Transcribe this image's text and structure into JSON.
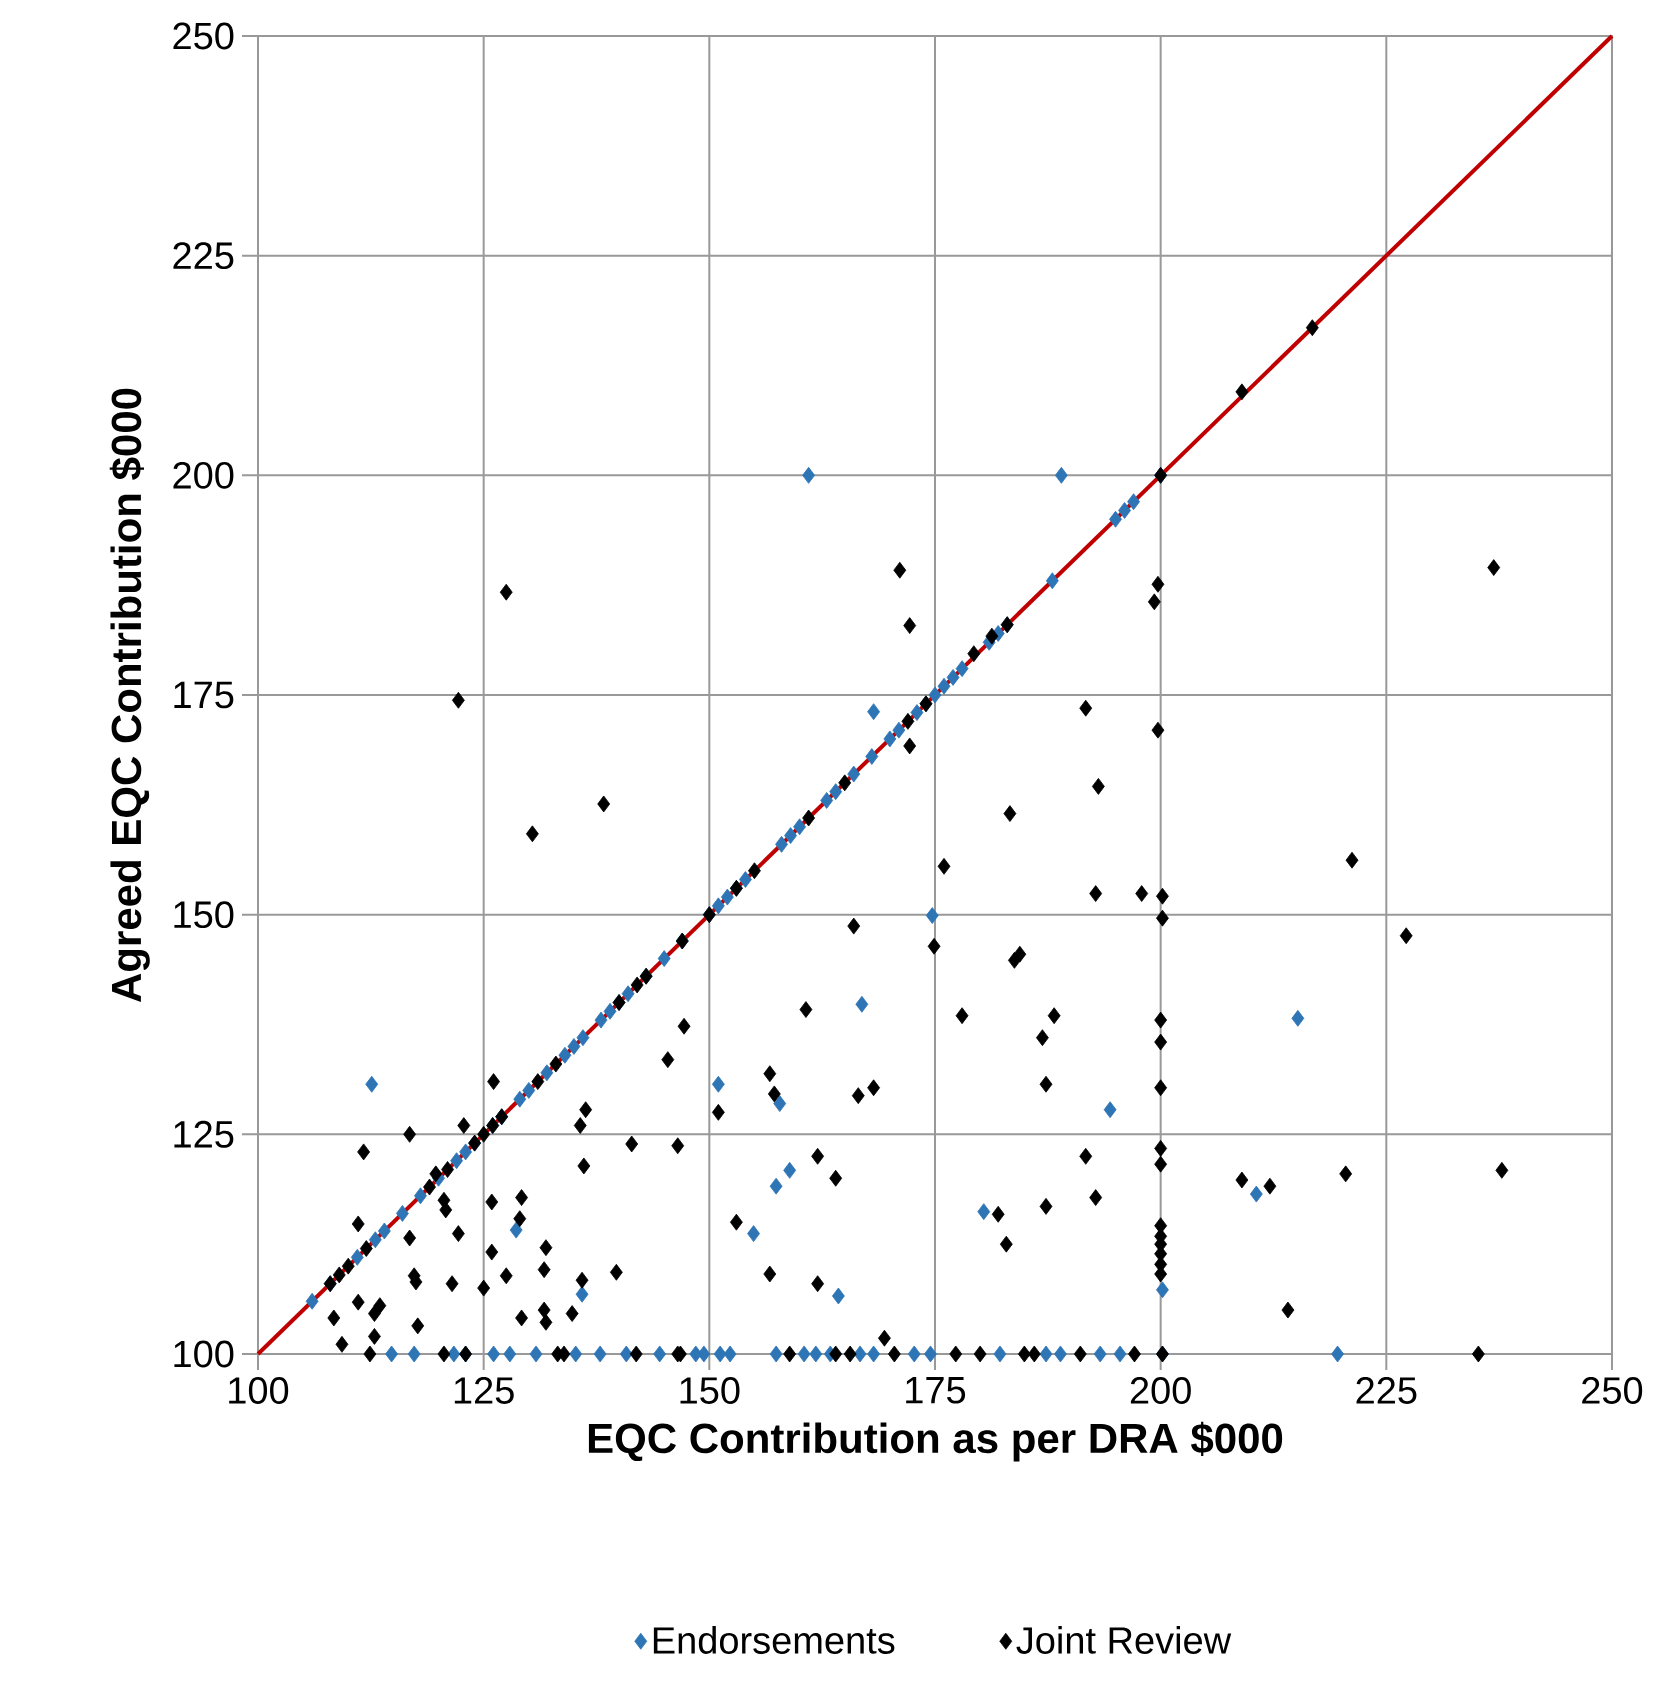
{
  "chart_data": {
    "type": "scatter",
    "xlabel": "EQC Contribution  as per DRA $000",
    "ylabel": "Agreed EQC Contribution  $000",
    "xlim": [
      100,
      250
    ],
    "ylim": [
      100,
      250
    ],
    "xticks": [
      100,
      125,
      150,
      175,
      200,
      225,
      250
    ],
    "yticks": [
      100,
      125,
      150,
      175,
      200,
      225,
      250
    ],
    "grid": true,
    "legend": "bottom",
    "series": [
      {
        "name": "Endorsements",
        "color": "#2e75b6",
        "marker": "diamond",
        "x": [
          106,
          108,
          111,
          113,
          114,
          116,
          118,
          120,
          122,
          123,
          124,
          126,
          127,
          129,
          130,
          132,
          134,
          135,
          136,
          138,
          139,
          140,
          141,
          143,
          145,
          147,
          150,
          151,
          152,
          153,
          154,
          158,
          159,
          160,
          163,
          164,
          166,
          168,
          170,
          171,
          173,
          174,
          175,
          176,
          177,
          178,
          181,
          182,
          183,
          188,
          195,
          196,
          197,
          200,
          161,
          189,
          112.6,
          168.2,
          174.7,
          166.9,
          151,
          157.8,
          194.4,
          158.9,
          157.4,
          154.9,
          180.4,
          164.3,
          128.6,
          135.9,
          215.2,
          210.6,
          200.2,
          114.8,
          117.3,
          121.7,
          123,
          126.1,
          127.9,
          130.8,
          135.2,
          137.9,
          140.8,
          144.5,
          148.5,
          149.4,
          151.2,
          152.3,
          157.4,
          160.5,
          161.8,
          163.4,
          166.7,
          168.2,
          172.7,
          174.5,
          182.2,
          187.3,
          188.9,
          193.3,
          195.5,
          200.2,
          219.6
        ],
        "values": [
          106,
          108,
          111,
          113,
          114,
          116,
          118,
          120,
          122,
          123,
          124,
          126,
          127,
          129,
          130,
          132,
          134,
          135,
          136,
          138,
          139,
          140,
          141,
          143,
          145,
          147,
          150,
          151,
          152,
          153,
          154,
          158,
          159,
          160,
          163,
          164,
          166,
          168,
          170,
          171,
          173,
          174,
          175,
          176,
          177,
          178,
          181,
          182,
          183,
          188,
          195,
          196,
          197,
          200,
          200,
          200,
          130.7,
          173.1,
          149.9,
          139.8,
          130.7,
          128.5,
          127.8,
          120.9,
          119.1,
          113.7,
          116.2,
          106.6,
          114.1,
          106.8,
          138.2,
          118.2,
          107.3,
          100,
          100,
          100,
          100,
          100,
          100,
          100,
          100,
          100,
          100,
          100,
          100,
          100,
          100,
          100,
          100,
          100,
          100,
          100,
          100,
          100,
          100,
          100,
          100,
          100,
          100,
          100,
          100,
          100,
          100
        ]
      },
      {
        "name": "Joint Review",
        "color": "#000000",
        "marker": "diamond",
        "x": [
          108,
          109,
          110,
          112,
          119,
          121,
          124,
          125,
          126,
          127,
          131,
          133,
          140,
          142,
          143,
          147,
          150,
          153,
          155,
          161,
          165,
          172,
          174,
          179.3,
          181.3,
          183,
          200,
          209,
          216.8,
          130.4,
          127.5,
          122.2,
          138.3,
          171.1,
          172.2,
          199.7,
          199.3,
          236.9,
          191.7,
          199.7,
          172.2,
          193.1,
          183.3,
          176,
          192.8,
          197.9,
          166,
          174.9,
          183.8,
          184.4,
          160.7,
          178,
          188.2,
          186.9,
          147.2,
          145.4,
          156.7,
          157.2,
          168.2,
          166.5,
          187.3,
          151,
          146.5,
          162,
          164,
          191.7,
          192.8,
          187.3,
          182,
          182.9,
          153,
          156.7,
          162,
          169.4,
          221.2,
          200.2,
          200.2,
          227.2,
          200,
          200,
          200,
          200,
          200,
          200,
          200,
          200,
          200,
          200,
          200,
          209,
          212.1,
          220.5,
          237.8,
          214.1,
          126.1,
          122.8,
          116.8,
          111.7,
          141.4,
          136.1,
          136.3,
          135.7,
          119.7,
          125.9,
          129.2,
          120.6,
          120.8,
          129,
          111.1,
          122.2,
          116.8,
          131.9,
          125.9,
          131.7,
          139.7,
          117.3,
          127.5,
          117.5,
          121.5,
          135.9,
          125,
          111.1,
          113.5,
          112.9,
          131.7,
          129.2,
          131.9,
          134.8,
          108.4,
          117.7,
          109.3,
          112.9,
          112.4,
          120.6,
          123,
          133.2,
          133.9,
          141.9,
          146.5,
          146.8,
          158.9,
          164,
          165.6,
          170.5,
          177.3,
          180,
          184.9,
          186,
          191.1,
          197.1,
          200.2,
          235.2
        ],
        "values": [
          108,
          109,
          110,
          112,
          119,
          121,
          124,
          125,
          126,
          127,
          131,
          133,
          140,
          142,
          143,
          147,
          150,
          153,
          155,
          161,
          165,
          172,
          174,
          179.7,
          181.7,
          183,
          200,
          209.5,
          216.8,
          159.2,
          186.7,
          174.4,
          162.6,
          189.2,
          182.9,
          187.6,
          185.6,
          189.5,
          173.5,
          171,
          169.2,
          164.6,
          161.5,
          155.5,
          152.4,
          152.4,
          148.7,
          146.4,
          144.8,
          145.5,
          139.2,
          138.5,
          138.5,
          136,
          137.3,
          133.5,
          131.9,
          129.6,
          130.3,
          129.4,
          130.7,
          127.5,
          123.7,
          122.5,
          120,
          122.5,
          117.8,
          116.8,
          115.9,
          112.5,
          115,
          109.1,
          108,
          101.8,
          156.2,
          152.1,
          149.6,
          147.6,
          138,
          135.5,
          130.3,
          123.4,
          121.6,
          114.6,
          113.4,
          112.5,
          111.4,
          110.2,
          109.1,
          119.8,
          119.1,
          120.5,
          120.9,
          105,
          131,
          126,
          125,
          123,
          123.9,
          121.4,
          127.8,
          126,
          120.5,
          117.3,
          117.8,
          117.5,
          116.4,
          115.4,
          114.8,
          113.7,
          113.2,
          112.1,
          111.6,
          109.6,
          109.3,
          108.9,
          108.9,
          108.2,
          108,
          108.4,
          107.5,
          105.9,
          105.5,
          104.6,
          105,
          104.1,
          103.6,
          104.6,
          104.1,
          103.2,
          101.1,
          102,
          100,
          100,
          100,
          100,
          100,
          100,
          100,
          100,
          100,
          100,
          100,
          100,
          100,
          100,
          100,
          100,
          100,
          100,
          100,
          100
        ]
      },
      {
        "color": "#c00000",
        "type": "line",
        "marker": "none",
        "x": [
          100,
          250
        ],
        "values": [
          100,
          250
        ]
      }
    ]
  }
}
